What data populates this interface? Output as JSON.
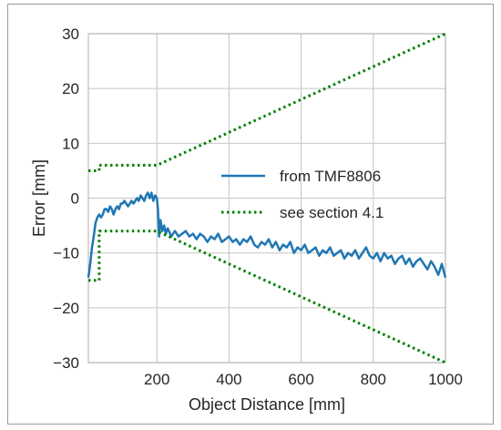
{
  "chart_data": {
    "type": "line",
    "title": "",
    "xlabel": "Object Distance [mm]",
    "ylabel": "Error [mm]",
    "xlim": [
      10,
      1000
    ],
    "ylim": [
      -30,
      30
    ],
    "xticks": [
      200,
      400,
      600,
      800,
      1000
    ],
    "yticks": [
      -30,
      -20,
      -10,
      0,
      10,
      20,
      30
    ],
    "tick_labels_x": [
      "200",
      "400",
      "600",
      "800",
      "1000"
    ],
    "tick_labels_y": [
      "−30",
      "−20",
      "−10",
      "0",
      "10",
      "20",
      "30"
    ],
    "grid": true,
    "legend_position": "center-right",
    "series": [
      {
        "name": "from TMF8806",
        "style": "solid",
        "color": "#1f77b4",
        "x": [
          10,
          15,
          20,
          25,
          30,
          35,
          40,
          45,
          50,
          55,
          60,
          65,
          70,
          75,
          80,
          85,
          90,
          95,
          100,
          105,
          110,
          115,
          120,
          125,
          130,
          135,
          140,
          145,
          150,
          155,
          160,
          165,
          170,
          175,
          180,
          185,
          190,
          195,
          200,
          203,
          206,
          210,
          215,
          220,
          225,
          230,
          240,
          250,
          260,
          270,
          280,
          290,
          300,
          310,
          320,
          330,
          340,
          350,
          360,
          370,
          380,
          390,
          400,
          410,
          420,
          430,
          440,
          450,
          460,
          470,
          480,
          490,
          500,
          510,
          520,
          530,
          540,
          550,
          560,
          570,
          580,
          590,
          600,
          610,
          620,
          630,
          640,
          650,
          660,
          670,
          680,
          690,
          700,
          710,
          720,
          730,
          740,
          750,
          760,
          770,
          780,
          790,
          800,
          810,
          820,
          830,
          840,
          850,
          860,
          870,
          880,
          890,
          900,
          910,
          920,
          930,
          940,
          950,
          960,
          970,
          980,
          990,
          1000
        ],
        "y": [
          -14.5,
          -12,
          -9,
          -7,
          -4.5,
          -3.5,
          -3,
          -3.5,
          -3,
          -2,
          -2,
          -2.5,
          -1.5,
          -2,
          -3,
          -2,
          -1.5,
          -2,
          -1,
          -1,
          -0.5,
          -1,
          -1.5,
          -1,
          -0.5,
          -1,
          -0.5,
          0,
          -0.5,
          0.5,
          0,
          -0.5,
          0.5,
          1,
          0,
          1,
          -0.5,
          0.5,
          0,
          -2,
          -7,
          -4,
          -6,
          -5,
          -6.5,
          -5.5,
          -7,
          -6,
          -7,
          -6.5,
          -6,
          -7,
          -6.5,
          -7.5,
          -6.5,
          -7,
          -8,
          -7,
          -7.5,
          -6.5,
          -8,
          -7.5,
          -7,
          -8,
          -7.5,
          -8.5,
          -7.5,
          -8,
          -7,
          -8.5,
          -9,
          -8,
          -8.5,
          -7.5,
          -9,
          -8,
          -9.5,
          -8.5,
          -9,
          -8,
          -10,
          -9,
          -9.5,
          -8.5,
          -10,
          -9.5,
          -9,
          -10.5,
          -9.5,
          -10,
          -9,
          -10.5,
          -10,
          -9.5,
          -11,
          -10,
          -10.5,
          -9.5,
          -11,
          -10,
          -9,
          -10.5,
          -11,
          -10,
          -11.5,
          -10,
          -11,
          -10.5,
          -12,
          -11,
          -10.5,
          -12,
          -11,
          -12.5,
          -11.5,
          -11,
          -12,
          -13,
          -11.5,
          -12.5,
          -14,
          -12,
          -14.5
        ]
      },
      {
        "name": "see section 4.1",
        "style": "dotted",
        "color": "#008000",
        "segments": [
          {
            "x": [
              10,
              40,
              40,
              200,
              1000
            ],
            "y": [
              5,
              5,
              6,
              6,
              30
            ]
          },
          {
            "x": [
              10,
              40,
              40,
              200,
              1000
            ],
            "y": [
              -15,
              -15,
              -6,
              -6,
              -30
            ]
          }
        ]
      }
    ]
  }
}
